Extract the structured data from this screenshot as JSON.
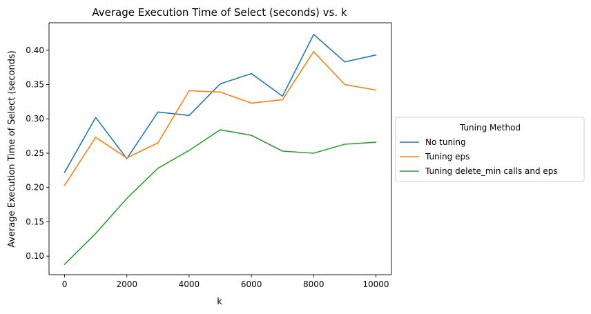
{
  "chart_data": {
    "type": "line",
    "title": "Average Execution Time of Select (seconds) vs. k",
    "xlabel": "k",
    "ylabel": "Average Execution Time of Select (seconds)",
    "x": [
      0,
      1000,
      2000,
      3000,
      4000,
      5000,
      6000,
      7000,
      8000,
      9000,
      10000
    ],
    "xlim": [
      -500,
      10500
    ],
    "ylim": [
      0.073,
      0.44
    ],
    "xticks": [
      0,
      2000,
      4000,
      6000,
      8000,
      10000
    ],
    "yticks": [
      0.1,
      0.15,
      0.2,
      0.25,
      0.3,
      0.35,
      0.4
    ],
    "xtick_labels": [
      "0",
      "2000",
      "4000",
      "6000",
      "8000",
      "10000"
    ],
    "ytick_labels": [
      "0.10",
      "0.15",
      "0.20",
      "0.25",
      "0.30",
      "0.35",
      "0.40"
    ],
    "grid": false,
    "legend": {
      "title": "Tuning Method",
      "placement": "right, outside plot"
    },
    "series": [
      {
        "name": "No tuning",
        "color": "#1f77b4",
        "values": [
          0.222,
          0.302,
          0.242,
          0.31,
          0.305,
          0.351,
          0.366,
          0.333,
          0.423,
          0.383,
          0.393
        ]
      },
      {
        "name": "Tuning eps",
        "color": "#ff7f0e",
        "values": [
          0.203,
          0.273,
          0.243,
          0.265,
          0.341,
          0.339,
          0.323,
          0.328,
          0.398,
          0.35,
          0.342
        ]
      },
      {
        "name": "Tuning delete_min calls and eps",
        "color": "#2ca02c",
        "values": [
          0.088,
          0.133,
          0.184,
          0.228,
          0.254,
          0.284,
          0.276,
          0.253,
          0.25,
          0.263,
          0.266
        ]
      }
    ]
  }
}
